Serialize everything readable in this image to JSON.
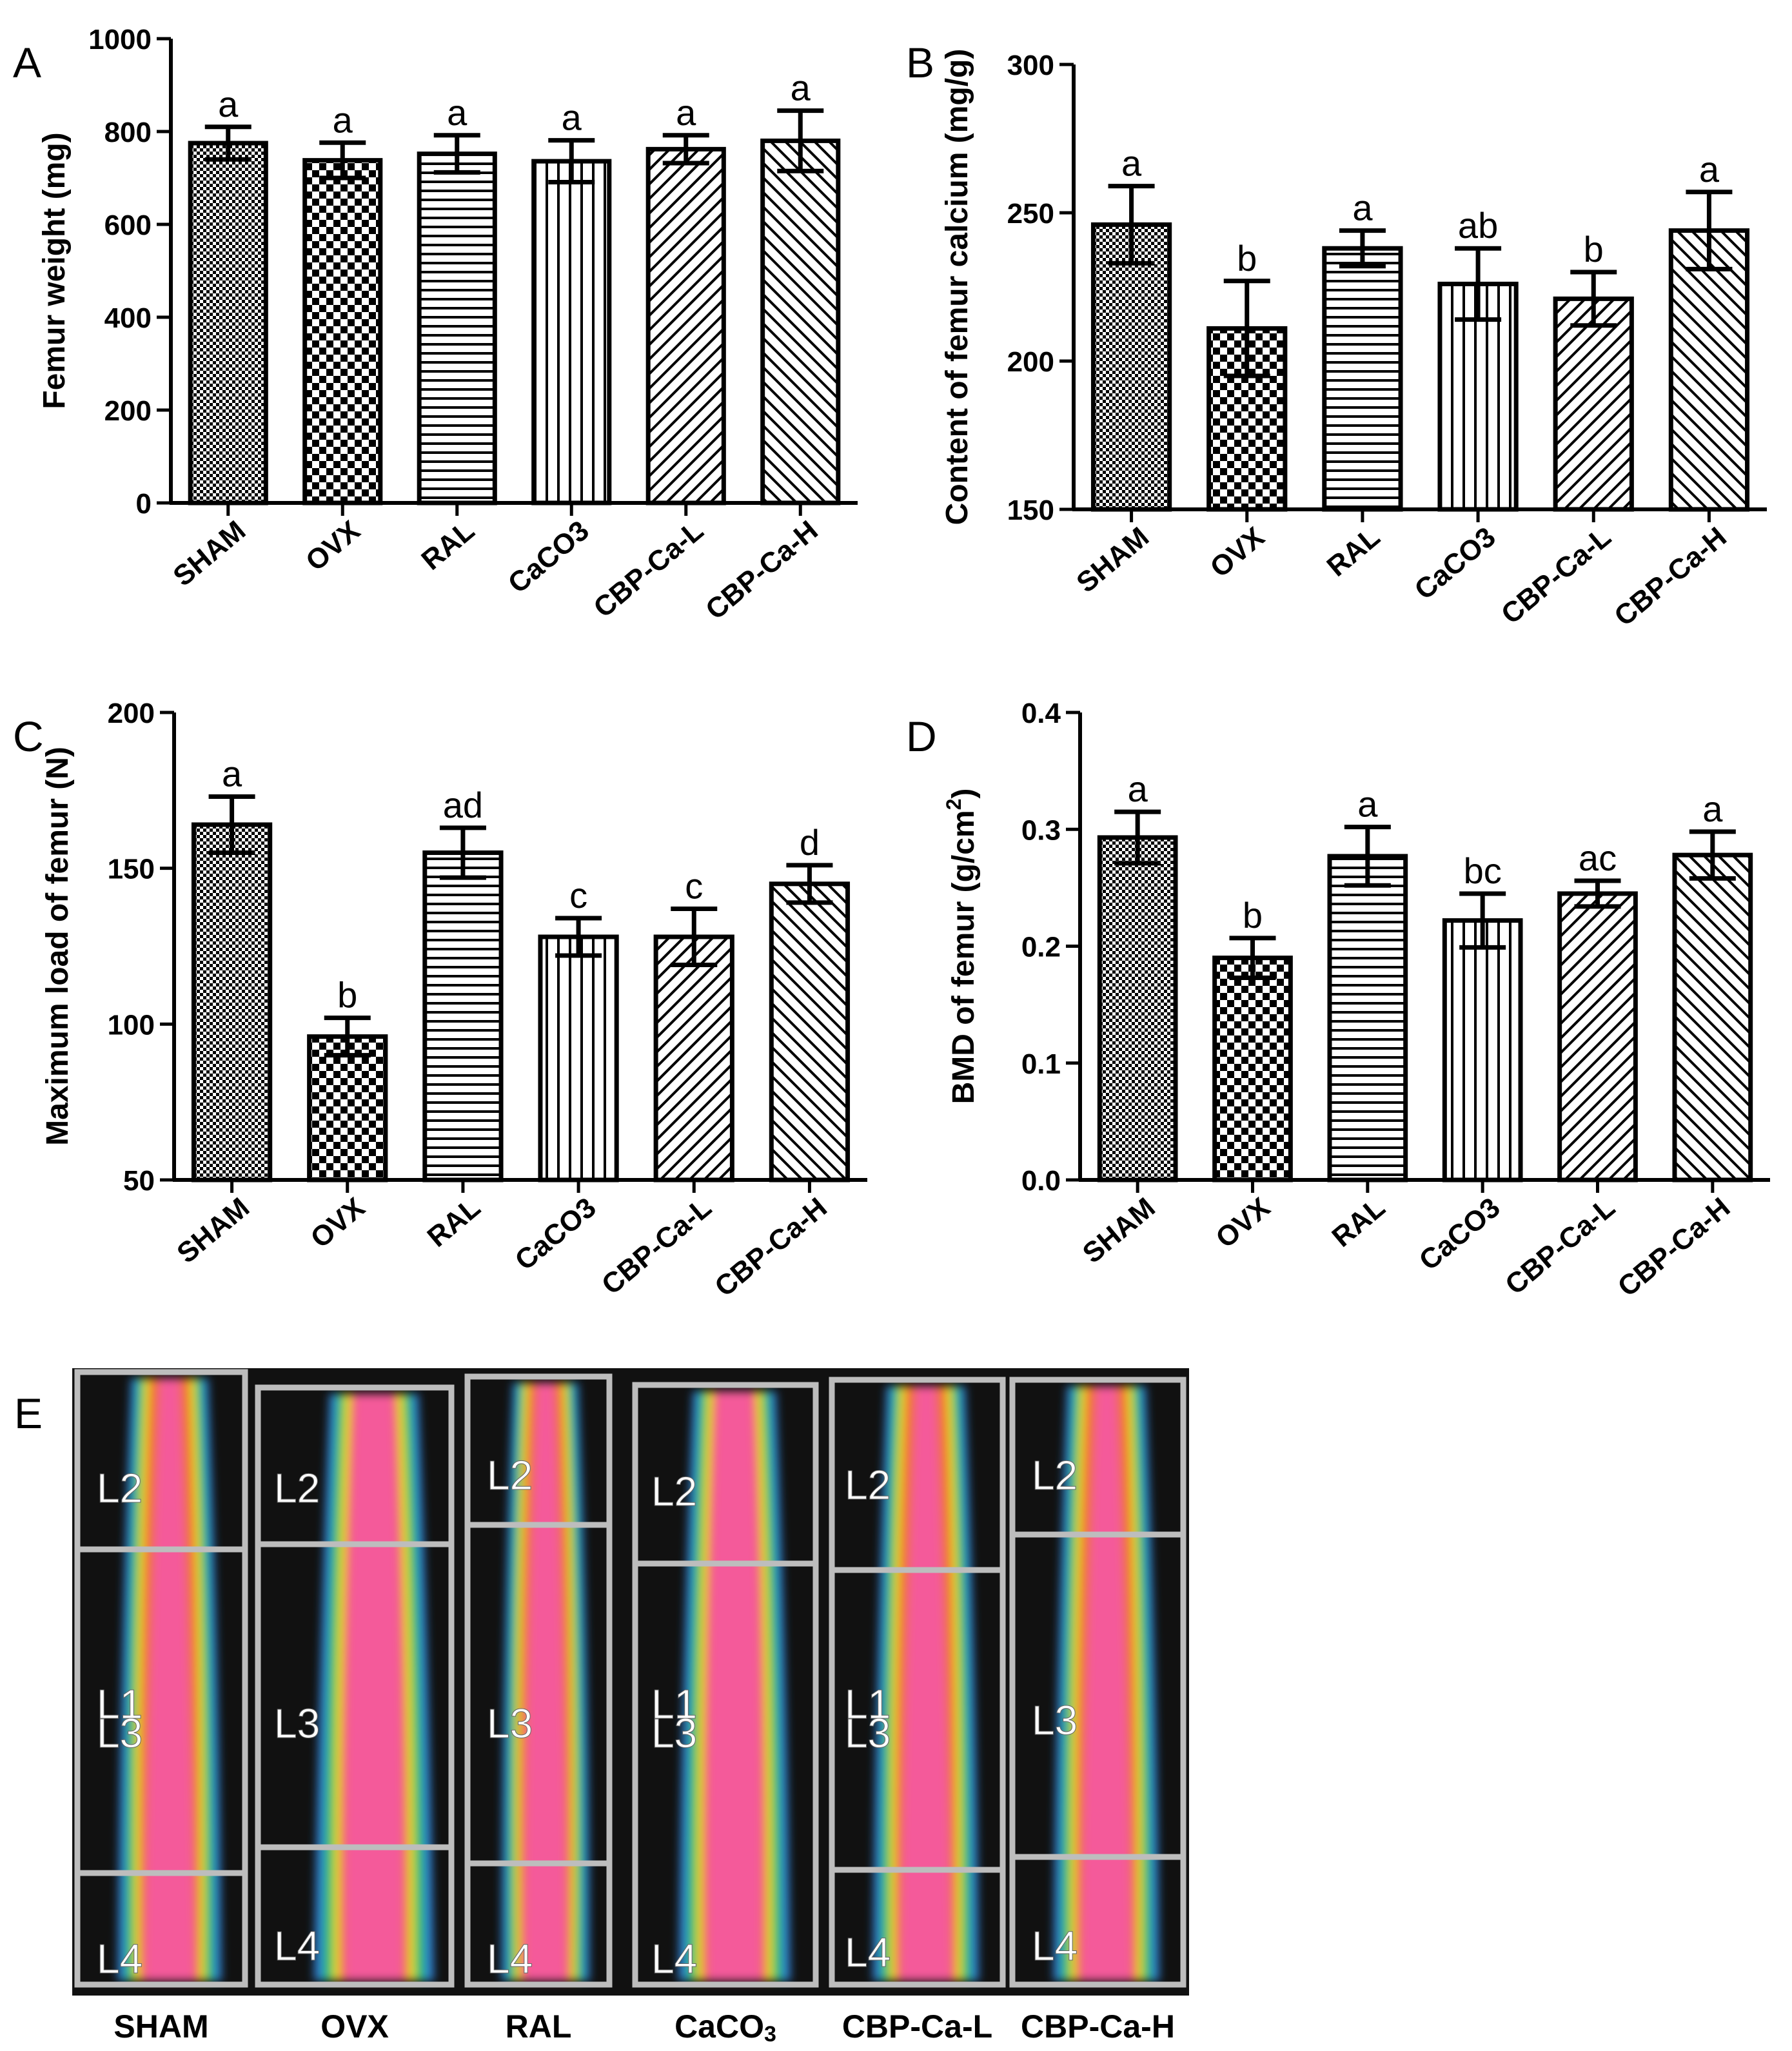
{
  "chart_data": [
    {
      "panel": "A",
      "type": "bar",
      "categories": [
        "SHAM",
        "OVX",
        "RAL",
        "CaCO3",
        "CBP-Ca-L",
        "CBP-Ca-H"
      ],
      "values": [
        775,
        738,
        752,
        736,
        762,
        780
      ],
      "errors": [
        35,
        38,
        40,
        45,
        30,
        65
      ],
      "letters": [
        "a",
        "a",
        "a",
        "a",
        "a",
        "a"
      ],
      "ylabel": "Femur weight (mg)",
      "ylim": [
        0,
        1000
      ],
      "yticks": [
        "0",
        "200",
        "400",
        "600",
        "800",
        "1000"
      ]
    },
    {
      "panel": "B",
      "type": "bar",
      "categories": [
        "SHAM",
        "OVX",
        "RAL",
        "CaCO3",
        "CBP-Ca-L",
        "CBP-Ca-H"
      ],
      "values": [
        246,
        211,
        238,
        226,
        221,
        244
      ],
      "errors": [
        13,
        16,
        6,
        12,
        9,
        13
      ],
      "letters": [
        "a",
        "b",
        "a",
        "ab",
        "b",
        "a"
      ],
      "ylabel": "Content of femur calcium (mg/g)",
      "ylim": [
        150,
        300
      ],
      "yticks": [
        "150",
        "200",
        "250",
        "300"
      ]
    },
    {
      "panel": "C",
      "type": "bar",
      "categories": [
        "SHAM",
        "OVX",
        "RAL",
        "CaCO3",
        "CBP-Ca-L",
        "CBP-Ca-H"
      ],
      "values": [
        164,
        96,
        155,
        128,
        128,
        145
      ],
      "errors": [
        9,
        6,
        8,
        6,
        9,
        6
      ],
      "letters": [
        "a",
        "b",
        "ad",
        "c",
        "c",
        "d"
      ],
      "ylabel": "Maximum load of femur (N)",
      "ylim": [
        50,
        200
      ],
      "yticks": [
        "50",
        "100",
        "150",
        "200"
      ]
    },
    {
      "panel": "D",
      "type": "bar",
      "categories": [
        "SHAM",
        "OVX",
        "RAL",
        "CaCO3",
        "CBP-Ca-L",
        "CBP-Ca-H"
      ],
      "values": [
        0.293,
        0.19,
        0.277,
        0.222,
        0.245,
        0.278
      ],
      "errors": [
        0.022,
        0.017,
        0.025,
        0.023,
        0.011,
        0.02
      ],
      "letters": [
        "a",
        "b",
        "a",
        "bc",
        "ac",
        "a"
      ],
      "ylabel": "BMD of femur (g/cm",
      "ylabel_sup": "2",
      "ylabel_end": ")",
      "ylim": [
        0,
        0.4
      ],
      "yticks": [
        "0.0",
        "0.1",
        "0.2",
        "0.3",
        "0.4"
      ]
    }
  ],
  "panel_labels": [
    "A",
    "B",
    "C",
    "D",
    "E"
  ],
  "scan": {
    "groups": [
      {
        "name": "SHAM",
        "regions": [
          "L2",
          "L1",
          "L3",
          "L4"
        ]
      },
      {
        "name": "OVX",
        "regions": [
          "L2",
          "L3",
          "L4"
        ]
      },
      {
        "name": "RAL",
        "regions": [
          "L2",
          "L3",
          "L4"
        ]
      },
      {
        "name": "CaCO3",
        "name_main": "CaCO",
        "name_sub": "3",
        "regions": [
          "L2",
          "L1",
          "L3",
          "L4"
        ]
      },
      {
        "name": "CBP-Ca-L",
        "regions": [
          "L2",
          "L1",
          "L3",
          "L4"
        ]
      },
      {
        "name": "CBP-Ca-H",
        "regions": [
          "L2",
          "L3",
          "L4"
        ]
      }
    ],
    "colors": {
      "background": "#111111",
      "low": "#2f7fd0",
      "mid_low": "#2fbf60",
      "mid": "#e8e030",
      "mid_high": "#f07028",
      "high": "#f45a9a",
      "frame": "#bdbdbd"
    }
  },
  "colors": {
    "ink": "#000000",
    "bar_fill": "#ffffff"
  }
}
